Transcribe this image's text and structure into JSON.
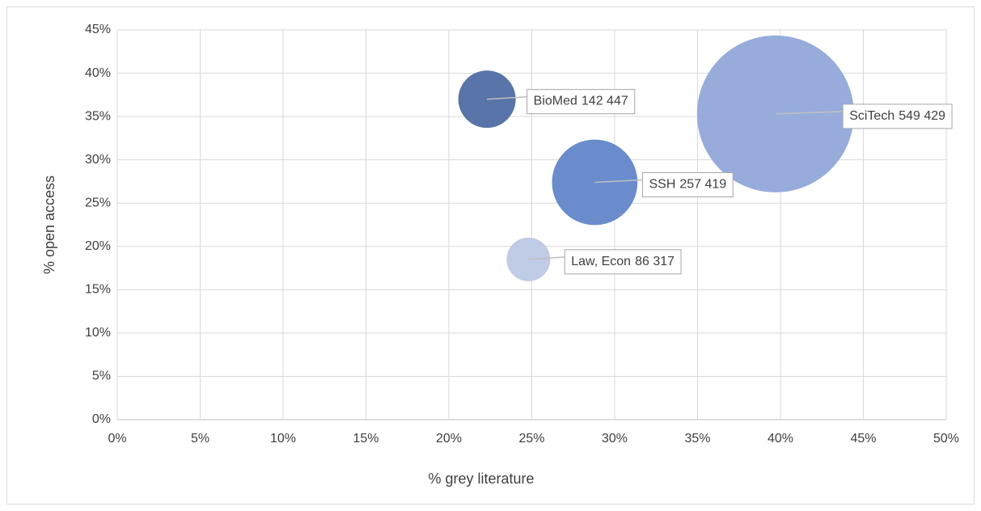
{
  "chart_data": {
    "type": "bubble",
    "xlabel": "% grey literature",
    "ylabel": "% open access",
    "series": [
      {
        "name": "BioMed",
        "color": "#5874a8",
        "x": [
          22.3
        ],
        "values": [
          37.0
        ],
        "sizes": [
          142447
        ],
        "size_labels": [
          "142 447"
        ]
      },
      {
        "name": "SSH",
        "color": "#6a8ccc",
        "x": [
          28.8
        ],
        "values": [
          27.4
        ],
        "sizes": [
          257419
        ],
        "size_labels": [
          "257 419"
        ]
      },
      {
        "name": "SciTech",
        "color": "#97acdb",
        "x": [
          39.7
        ],
        "values": [
          35.3
        ],
        "sizes": [
          549429
        ],
        "size_labels": [
          "549 429"
        ]
      },
      {
        "name": "Law, Econ",
        "color": "#c0cbe6",
        "x": [
          24.8
        ],
        "values": [
          18.5
        ],
        "sizes": [
          86317
        ],
        "size_labels": [
          "86 317"
        ]
      }
    ],
    "xlim": [
      0,
      50
    ],
    "xticks": [
      {
        "value": 0,
        "label": "0%"
      },
      {
        "value": 5,
        "label": "5%"
      },
      {
        "value": 10,
        "label": "10%"
      },
      {
        "value": 15,
        "label": "15%"
      },
      {
        "value": 20,
        "label": "20%"
      },
      {
        "value": 25,
        "label": "25%"
      },
      {
        "value": 30,
        "label": "30%"
      },
      {
        "value": 35,
        "label": "35%"
      },
      {
        "value": 40,
        "label": "40%"
      },
      {
        "value": 45,
        "label": "45%"
      },
      {
        "value": 50,
        "label": "50%"
      }
    ],
    "ylim": [
      0,
      45
    ],
    "yticks": [
      {
        "value": 0,
        "label": "0%"
      },
      {
        "value": 5,
        "label": "5%"
      },
      {
        "value": 10,
        "label": "10%"
      },
      {
        "value": 15,
        "label": "15%"
      },
      {
        "value": 20,
        "label": "20%"
      },
      {
        "value": 25,
        "label": "25%"
      },
      {
        "value": 30,
        "label": "30%"
      },
      {
        "value": 35,
        "label": "35%"
      },
      {
        "value": 40,
        "label": "40%"
      },
      {
        "value": 45,
        "label": "45%"
      }
    ],
    "grid": true
  }
}
